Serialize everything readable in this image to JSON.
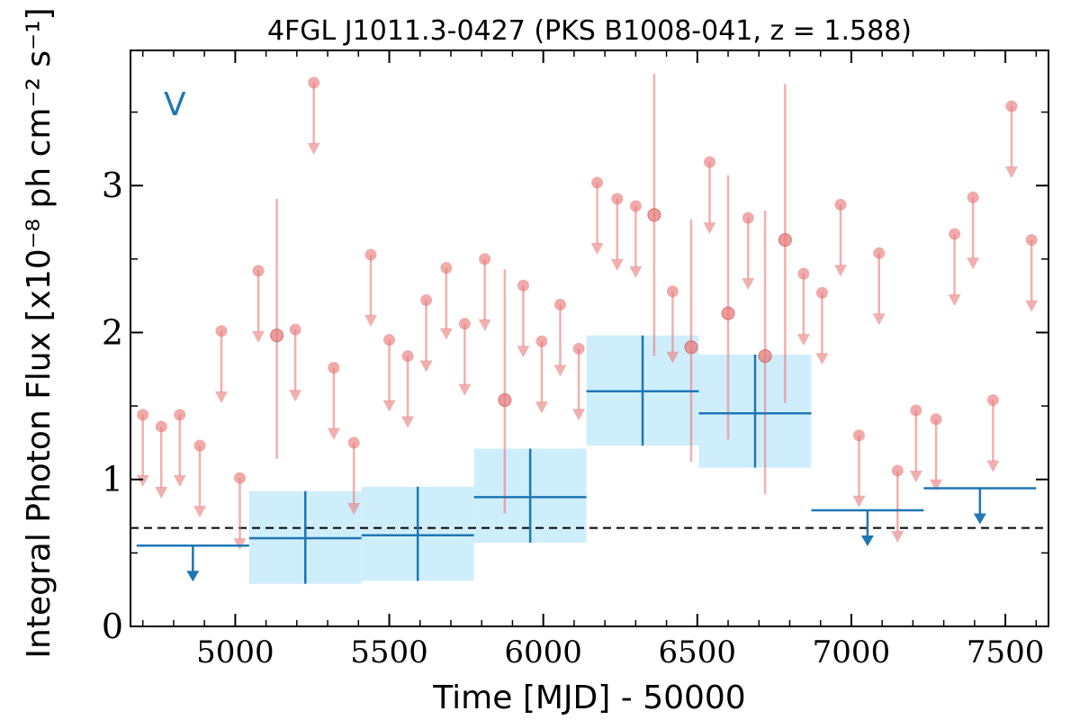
{
  "chart_data": {
    "type": "scatter",
    "title": "4FGL J1011.3-0427 (PKS B1008-041, z = 1.588)",
    "xlabel": "Time [MJD] - 50000",
    "ylabel": "Integral Photon Flux [x10⁻⁸ ph cm⁻² s⁻¹]",
    "band_label": "V",
    "xlim": [
      4660,
      7640
    ],
    "ylim": [
      0,
      3.92
    ],
    "x_ticks": [
      5000,
      5500,
      6000,
      6500,
      7000,
      7500
    ],
    "y_ticks": [
      0,
      1,
      2,
      3
    ],
    "reference_level": 0.67,
    "colors": {
      "short_bins": "#e87c7c",
      "long_bins": "#1f77b4",
      "error_band": "#cfeefc",
      "reference_line": "#000000"
    },
    "short_bin_upper_limits": [
      {
        "x": 4700,
        "y": 1.44
      },
      {
        "x": 4760,
        "y": 1.36
      },
      {
        "x": 4820,
        "y": 1.44
      },
      {
        "x": 4885,
        "y": 1.23
      },
      {
        "x": 4955,
        "y": 2.01
      },
      {
        "x": 5015,
        "y": 1.01
      },
      {
        "x": 5075,
        "y": 2.42
      },
      {
        "x": 5195,
        "y": 2.02
      },
      {
        "x": 5255,
        "y": 3.7
      },
      {
        "x": 5320,
        "y": 1.76
      },
      {
        "x": 5385,
        "y": 1.25
      },
      {
        "x": 5440,
        "y": 2.53
      },
      {
        "x": 5500,
        "y": 1.95
      },
      {
        "x": 5560,
        "y": 1.84
      },
      {
        "x": 5620,
        "y": 2.22
      },
      {
        "x": 5685,
        "y": 2.44
      },
      {
        "x": 5745,
        "y": 2.06
      },
      {
        "x": 5810,
        "y": 2.5
      },
      {
        "x": 5935,
        "y": 2.32
      },
      {
        "x": 5995,
        "y": 1.94
      },
      {
        "x": 6055,
        "y": 2.19
      },
      {
        "x": 6115,
        "y": 1.89
      },
      {
        "x": 6175,
        "y": 3.02
      },
      {
        "x": 6240,
        "y": 2.91
      },
      {
        "x": 6300,
        "y": 2.86
      },
      {
        "x": 6420,
        "y": 2.28
      },
      {
        "x": 6540,
        "y": 3.16
      },
      {
        "x": 6665,
        "y": 2.78
      },
      {
        "x": 6845,
        "y": 2.4
      },
      {
        "x": 6905,
        "y": 2.27
      },
      {
        "x": 6965,
        "y": 2.87
      },
      {
        "x": 7025,
        "y": 1.3
      },
      {
        "x": 7090,
        "y": 2.54
      },
      {
        "x": 7150,
        "y": 1.06
      },
      {
        "x": 7210,
        "y": 1.47
      },
      {
        "x": 7275,
        "y": 1.41
      },
      {
        "x": 7335,
        "y": 2.67
      },
      {
        "x": 7395,
        "y": 2.92
      },
      {
        "x": 7460,
        "y": 1.54
      },
      {
        "x": 7520,
        "y": 3.54
      },
      {
        "x": 7585,
        "y": 2.63
      }
    ],
    "short_bin_detections": [
      {
        "x": 5135,
        "y": 1.98,
        "ylo": 1.14,
        "yhi": 2.91
      },
      {
        "x": 5875,
        "y": 1.54,
        "ylo": 0.77,
        "yhi": 2.43
      },
      {
        "x": 6360,
        "y": 2.8,
        "ylo": 1.84,
        "yhi": 3.76
      },
      {
        "x": 6480,
        "y": 1.9,
        "ylo": 1.12,
        "yhi": 2.77
      },
      {
        "x": 6600,
        "y": 2.13,
        "ylo": 1.27,
        "yhi": 3.07
      },
      {
        "x": 6720,
        "y": 1.84,
        "ylo": 0.9,
        "yhi": 2.83
      },
      {
        "x": 6785,
        "y": 2.63,
        "ylo": 1.52,
        "yhi": 3.69
      }
    ],
    "long_bin_detections": [
      {
        "x0": 5045,
        "x1": 5410,
        "y": 0.6,
        "ylo": 0.29,
        "yhi": 0.92
      },
      {
        "x0": 5410,
        "x1": 5775,
        "y": 0.62,
        "ylo": 0.31,
        "yhi": 0.95
      },
      {
        "x0": 5775,
        "x1": 6140,
        "y": 0.88,
        "ylo": 0.57,
        "yhi": 1.21
      },
      {
        "x0": 6140,
        "x1": 6505,
        "y": 1.6,
        "ylo": 1.23,
        "yhi": 1.98
      },
      {
        "x0": 6505,
        "x1": 6870,
        "y": 1.45,
        "ylo": 1.08,
        "yhi": 1.85
      }
    ],
    "long_bin_upper_limits": [
      {
        "x0": 4680,
        "x1": 5045,
        "y": 0.55
      },
      {
        "x0": 6870,
        "x1": 7235,
        "y": 0.79
      },
      {
        "x0": 7235,
        "x1": 7600,
        "y": 0.94
      }
    ]
  }
}
